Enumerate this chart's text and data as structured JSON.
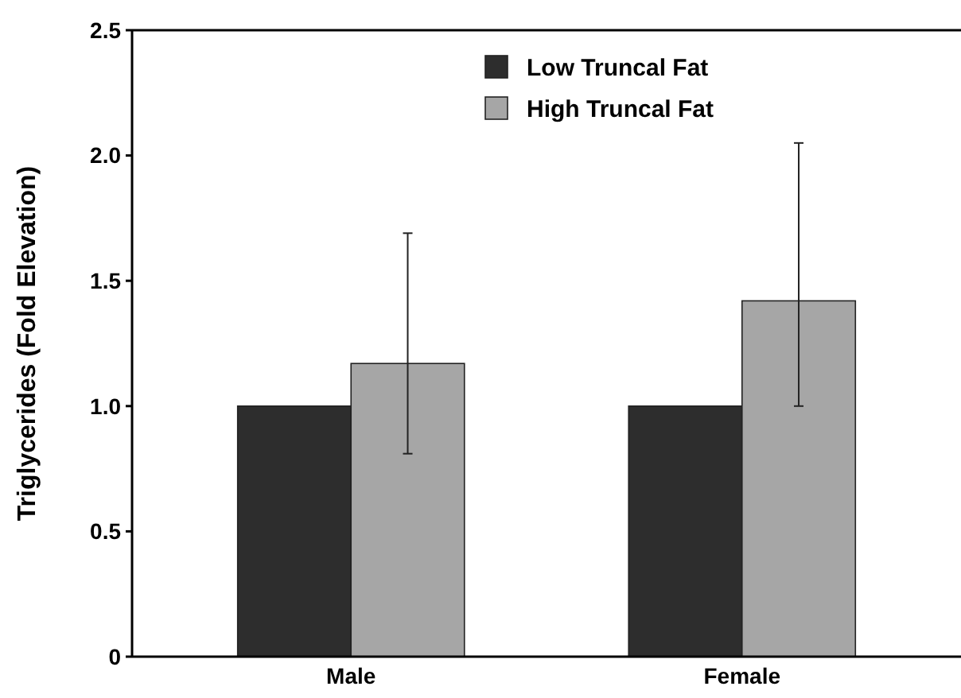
{
  "chart_data": {
    "type": "bar",
    "ylabel": "Triglycerides (Fold Elevation)",
    "categories": [
      "Male",
      "Female"
    ],
    "series": [
      {
        "name": "Low Truncal Fat",
        "color": "#2d2d2d",
        "values": [
          1.0,
          1.0
        ]
      },
      {
        "name": "High Truncal Fat",
        "color": "#a6a6a6",
        "values": [
          1.17,
          1.42
        ],
        "errors": [
          [
            0.81,
            1.69
          ],
          [
            1.0,
            2.05
          ]
        ]
      }
    ],
    "ylim": [
      0,
      2.5
    ],
    "yticks": [
      0,
      {
        "value": 0.5,
        "label": "0.5"
      },
      {
        "value": 1,
        "label": "1.0"
      },
      {
        "value": 1.5,
        "label": "1.5"
      },
      {
        "value": 2,
        "label": "2.0"
      },
      {
        "value": 2.5,
        "label": "2.5"
      }
    ],
    "grid": false,
    "legend": "top"
  }
}
